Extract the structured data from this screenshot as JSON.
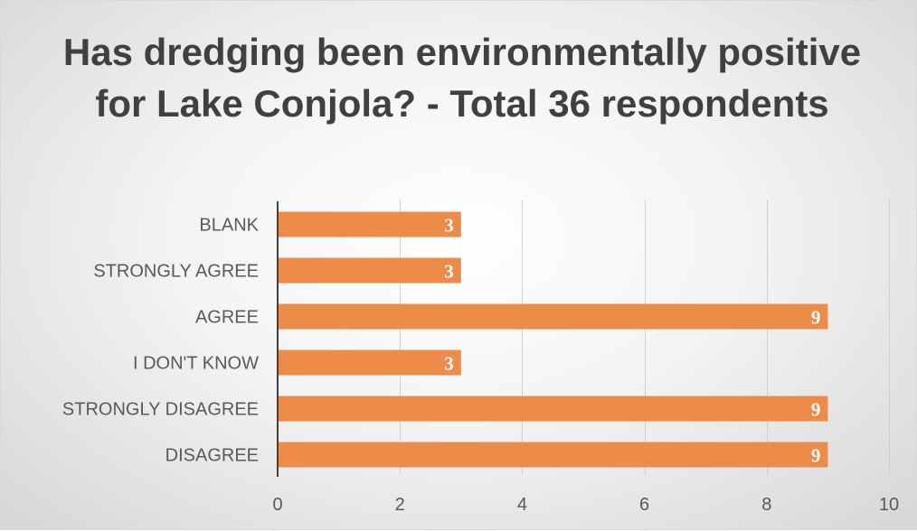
{
  "chart_data": {
    "type": "bar",
    "orientation": "horizontal",
    "title": "Has dredging been environmentally positive for Lake Conjola? - Total 36 respondents",
    "categories": [
      "BLANK",
      "STRONGLY AGREE",
      "AGREE",
      "I DON'T KNOW",
      "STRONGLY DISAGREE",
      "DISAGREE"
    ],
    "values": [
      3,
      3,
      9,
      3,
      9,
      9
    ],
    "xlim": [
      0,
      10
    ],
    "xticks": [
      0,
      2,
      4,
      6,
      8,
      10
    ],
    "xlabel": "",
    "ylabel": "",
    "grid": true,
    "data_labels": true,
    "colors": {
      "bar": "#ED8B48",
      "title": "#404040",
      "label": "#595959",
      "grid": "#D0D0D0"
    }
  }
}
